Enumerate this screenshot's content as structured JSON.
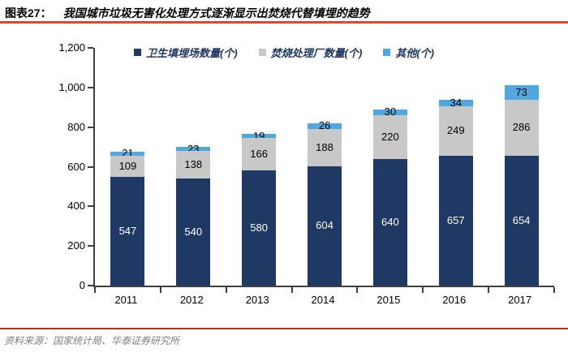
{
  "header": {
    "fig_label": "图表27：",
    "title": "我国城市垃圾无害化处理方式逐渐显示出焚烧代替填埋的趋势"
  },
  "source": {
    "text": "资料来源：国家统计局、华泰证券研究所"
  },
  "colors": {
    "landfill": "#1F3864",
    "incineration": "#C8C8C8",
    "other": "#4FA8E0",
    "title_rule": "#E0472F",
    "source_rule": "#B03024",
    "axis": "#3F3F3F",
    "legend_text": "#1F3864"
  },
  "chart_data": {
    "type": "bar",
    "stacked": true,
    "title": "我国城市垃圾无害化处理方式逐渐显示出焚烧代替填埋的趋势",
    "categories": [
      "2011",
      "2012",
      "2013",
      "2014",
      "2015",
      "2016",
      "2017"
    ],
    "series": [
      {
        "name": "卫生填埋场数量(个)",
        "color_key": "landfill",
        "label_color": "#FFFFFF",
        "values": [
          547,
          540,
          580,
          604,
          640,
          657,
          654
        ]
      },
      {
        "name": "焚烧处理厂数量(个)",
        "color_key": "incineration",
        "label_color": "#000000",
        "values": [
          109,
          138,
          166,
          188,
          220,
          249,
          286
        ]
      },
      {
        "name": "其他(个)",
        "color_key": "other",
        "label_color": "#000000",
        "values": [
          21,
          23,
          19,
          26,
          30,
          34,
          73
        ]
      }
    ],
    "xlabel": "",
    "ylabel": "",
    "ylim": [
      0,
      1200
    ],
    "yticks": [
      "0",
      "200",
      "400",
      "600",
      "800",
      "1,000",
      "1,200"
    ],
    "grid": false,
    "legend_position": "top-center",
    "data_labels": true
  }
}
